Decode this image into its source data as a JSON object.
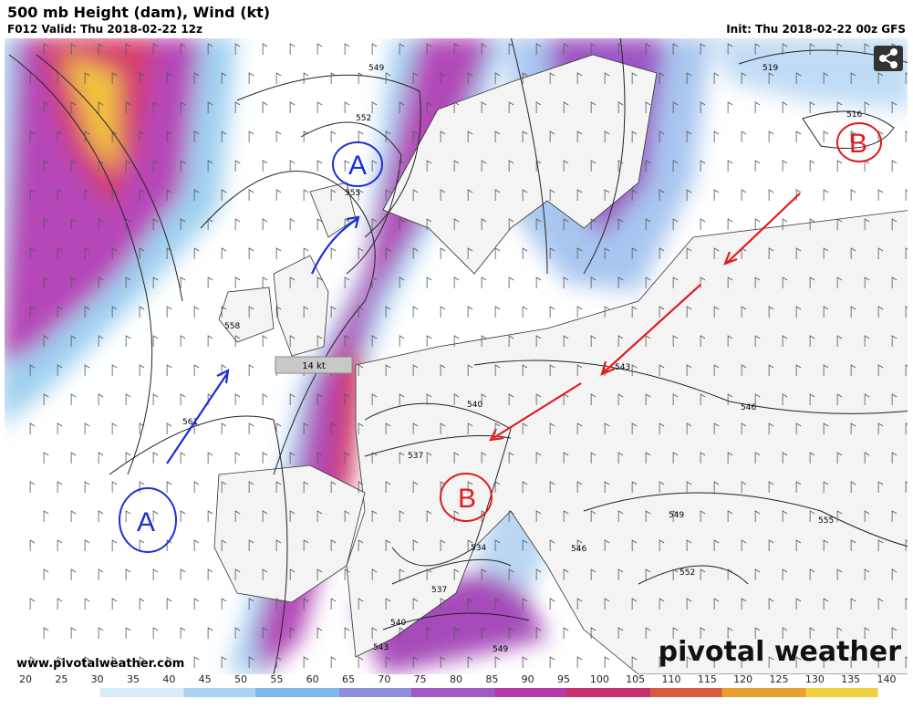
{
  "header": {
    "title": "500 mb Height (dam), Wind (kt)",
    "valid": "F012 Valid: Thu 2018-02-22 12z",
    "init": "Init: Thu 2018-02-22 00z GFS"
  },
  "contour_labels": [
    "549",
    "552",
    "555",
    "558",
    "561",
    "519",
    "516",
    "543",
    "540",
    "537",
    "546",
    "549",
    "555",
    "552",
    "534",
    "537",
    "540",
    "543",
    "549",
    "546"
  ],
  "wind_sample": "14 kt",
  "annotations": [
    "A",
    "A",
    "B",
    "B"
  ],
  "website": "www.pivotalweather.com",
  "brand": "pivotal weather",
  "colorbar": {
    "labels": [
      20,
      25,
      30,
      35,
      40,
      45,
      50,
      55,
      60,
      65,
      70,
      75,
      80,
      85,
      90,
      95,
      100,
      105,
      110,
      115,
      120,
      125,
      130,
      135,
      140
    ]
  }
}
